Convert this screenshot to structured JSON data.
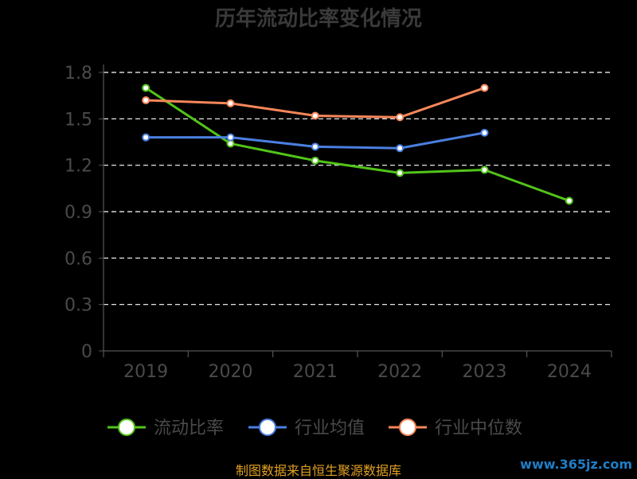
{
  "chart_data": {
    "type": "line",
    "title": "历年流动比率变化情况",
    "categories": [
      "2019",
      "2020",
      "2021",
      "2022",
      "2023",
      "2024"
    ],
    "y_ticks": [
      "0",
      "0.3",
      "0.6",
      "0.9",
      "1.2",
      "1.5",
      "1.8"
    ],
    "ylim": [
      0,
      1.8
    ],
    "grid": true,
    "legend_position": "bottom",
    "series": [
      {
        "name": "流动比率",
        "color": "#52c41a",
        "values": [
          1.7,
          1.34,
          1.23,
          1.15,
          1.17,
          0.97
        ]
      },
      {
        "name": "行业均值",
        "color": "#4a7fe0",
        "values": [
          1.38,
          1.38,
          1.32,
          1.31,
          1.41,
          null
        ]
      },
      {
        "name": "行业中位数",
        "color": "#f7875a",
        "values": [
          1.62,
          1.6,
          1.52,
          1.51,
          1.7,
          null
        ]
      }
    ]
  },
  "footer": {
    "source": "制图数据来自恒生聚源数据库",
    "watermark": "www.365jz.com"
  }
}
